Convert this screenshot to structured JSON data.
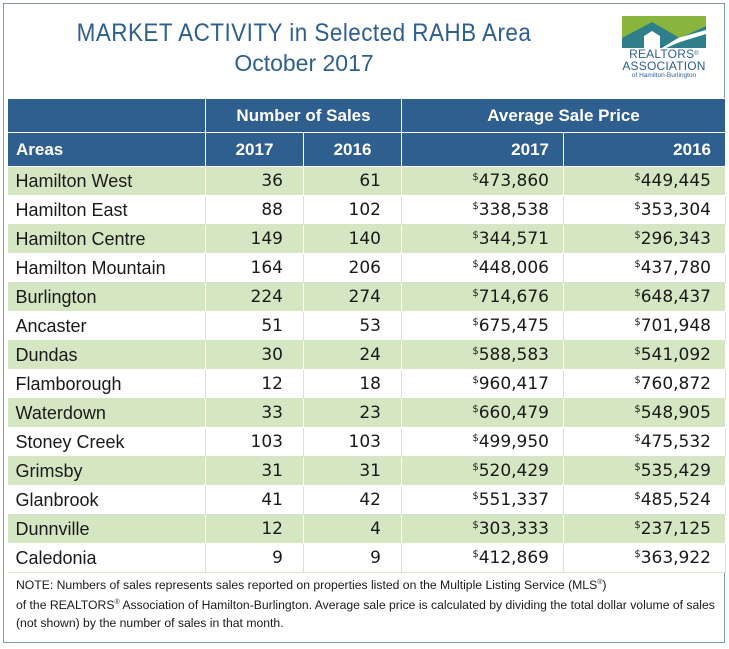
{
  "header": {
    "title_line1": "MARKET ACTIVITY in Selected RAHB Area",
    "title_line2": "October 2017"
  },
  "logo": {
    "word1": "REALTORS",
    "word2": "ASSOCIATION",
    "word3": "of Hamilton-Burlington",
    "icon": "house-roof-logo-icon",
    "colors": {
      "green": "#8ab53d",
      "teal": "#2f7f8a"
    }
  },
  "colors": {
    "header_bg": "#2f5f8e",
    "row_alt": "#d5e6c3",
    "title": "#2e5f8f"
  },
  "chart_data": {
    "type": "table",
    "title": "MARKET ACTIVITY in Selected RAHB Area October 2017",
    "group_headers": [
      "Number of Sales",
      "Average Sale Price"
    ],
    "columns": [
      "Areas",
      "2017",
      "2016",
      "2017",
      "2016"
    ],
    "rows": [
      {
        "area": "Hamilton West",
        "sales_2017": "36",
        "sales_2016": "61",
        "price_2017": "473,860",
        "price_2016": "449,445"
      },
      {
        "area": "Hamilton East",
        "sales_2017": "88",
        "sales_2016": "102",
        "price_2017": "338,538",
        "price_2016": "353,304"
      },
      {
        "area": "Hamilton Centre",
        "sales_2017": "149",
        "sales_2016": "140",
        "price_2017": "344,571",
        "price_2016": "296,343"
      },
      {
        "area": "Hamilton Mountain",
        "sales_2017": "164",
        "sales_2016": "206",
        "price_2017": "448,006",
        "price_2016": "437,780"
      },
      {
        "area": "Burlington",
        "sales_2017": "224",
        "sales_2016": "274",
        "price_2017": "714,676",
        "price_2016": "648,437"
      },
      {
        "area": "Ancaster",
        "sales_2017": "51",
        "sales_2016": "53",
        "price_2017": "675,475",
        "price_2016": "701,948"
      },
      {
        "area": "Dundas",
        "sales_2017": "30",
        "sales_2016": "24",
        "price_2017": "588,583",
        "price_2016": "541,092"
      },
      {
        "area": "Flamborough",
        "sales_2017": "12",
        "sales_2016": "18",
        "price_2017": "960,417",
        "price_2016": "760,872"
      },
      {
        "area": "Waterdown",
        "sales_2017": "33",
        "sales_2016": "23",
        "price_2017": "660,479",
        "price_2016": "548,905"
      },
      {
        "area": "Stoney Creek",
        "sales_2017": "103",
        "sales_2016": "103",
        "price_2017": "499,950",
        "price_2016": "475,532"
      },
      {
        "area": "Grimsby",
        "sales_2017": "31",
        "sales_2016": "31",
        "price_2017": "520,429",
        "price_2016": "535,429"
      },
      {
        "area": "Glanbrook",
        "sales_2017": "41",
        "sales_2016": "42",
        "price_2017": "551,337",
        "price_2016": "485,524"
      },
      {
        "area": "Dunnville",
        "sales_2017": "12",
        "sales_2016": "4",
        "price_2017": "303,333",
        "price_2016": "237,125"
      },
      {
        "area": "Caledonia",
        "sales_2017": "9",
        "sales_2016": "9",
        "price_2017": "412,869",
        "price_2016": "363,922"
      }
    ],
    "currency_symbol": "$"
  },
  "note": {
    "part1": "NOTE:  Numbers of sales represents sales reported on properties listed on the Multiple Listing Service (MLS",
    "reg": "®",
    "part2": ")",
    "part3": "of the REALTORS",
    "part4": " Association of Hamilton-Burlington.  Average sale price is calculated by dividing the total dollar volume of sales (not shown) by the number of sales in that month."
  }
}
